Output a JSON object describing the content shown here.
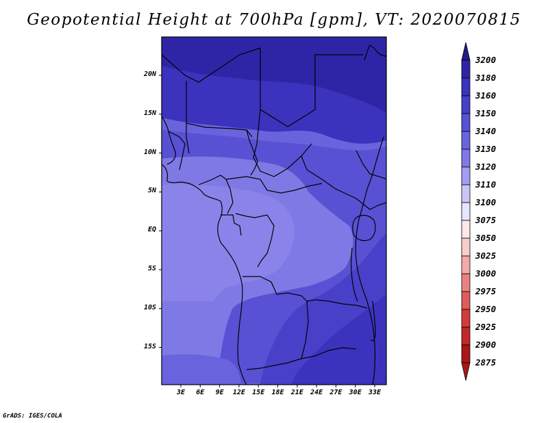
{
  "title": "Geopotential Height at 700hPa [gpm], VT: 2020070815",
  "credit": "GrADS: IGES/COLA",
  "map": {
    "lat_ticks": [
      "20N",
      "15N",
      "10N",
      "5N",
      "EQ",
      "5S",
      "10S",
      "15S"
    ],
    "lon_ticks": [
      "3E",
      "6E",
      "9E",
      "12E",
      "15E",
      "18E",
      "21E",
      "24E",
      "27E",
      "30E",
      "33E"
    ]
  },
  "colorbar": {
    "levels": [
      "3200",
      "3180",
      "3160",
      "3150",
      "3140",
      "3130",
      "3120",
      "3110",
      "3100",
      "3075",
      "3050",
      "3025",
      "3000",
      "2975",
      "2950",
      "2925",
      "2900",
      "2875"
    ],
    "colors": [
      "#231a82",
      "#2e25a6",
      "#3b33bd",
      "#4840c9",
      "#5851d4",
      "#6a63de",
      "#7f79e6",
      "#a29df0",
      "#c9c6f7",
      "#e7e6fb",
      "#fde9e9",
      "#f9cdcd",
      "#f2aaaa",
      "#e88282",
      "#de5c5c",
      "#d43b3b",
      "#c42828",
      "#a81818"
    ]
  }
}
